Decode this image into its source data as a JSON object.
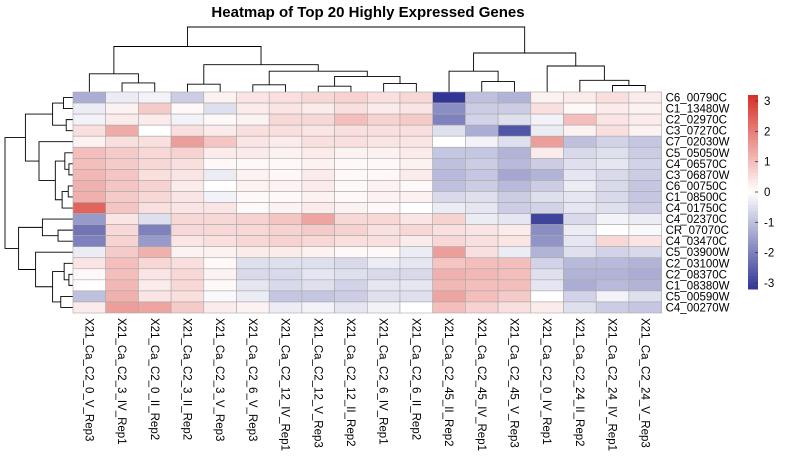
{
  "chart_data": {
    "type": "heatmap",
    "title": "Heatmap of Top 20 Highly Expressed Genes",
    "columns": [
      "X21_Ca_C2_0_V_Rep3",
      "X21_Ca_C2_3_IV_Rep1",
      "X21_Ca_C2_0_II_Rep2",
      "X21_Ca_C2_3_II_Rep2",
      "X21_Ca_C2_3_V_Rep3",
      "X21_Ca_C2_6_V_Rep3",
      "X21_Ca_C2_12_IV_Rep1",
      "X21_Ca_C2_12_V_Rep3",
      "X21_Ca_C2_12_II_Rep2",
      "X21_Ca_C2_6_IV_Rep1",
      "X21_Ca_C2_6_II_Rep2",
      "X21_Ca_C2_45_II_Rep2",
      "X21_Ca_C2_45_IV_Rep1",
      "X21_Ca_C2_45_V_Rep3",
      "X21_Ca_C2_0_IV_Rep1",
      "X21_Ca_C2_24_II_Rep2",
      "X21_Ca_C2_24_IV_Rep1",
      "X21_Ca_C2_24_V_Rep3"
    ],
    "rows": [
      "C6_00790C",
      "C1_13480W",
      "C2_02970C",
      "C3_07270C",
      "C7_02030W",
      "C5_05050W",
      "C4_06570C",
      "C3_06870W",
      "C6_00750C",
      "C1_08500C",
      "C4_01750C",
      "C4_02370C",
      "CR_07070C",
      "C4_03470C",
      "C5_03900W",
      "C2_03100W",
      "C2_08370C",
      "C1_08380W",
      "C5_00590W",
      "C4_00270W"
    ],
    "values": [
      [
        -1.3,
        -0.3,
        -0.2,
        -0.8,
        0.2,
        0.4,
        0.5,
        0.6,
        0.7,
        0.5,
        0.6,
        -3.2,
        -1.0,
        -1.2,
        0.2,
        0.3,
        0.5,
        0.3
      ],
      [
        -0.3,
        0.2,
        0.8,
        0.1,
        -0.5,
        0.3,
        0.4,
        0.3,
        0.5,
        0.3,
        0.4,
        -1.8,
        -0.8,
        -0.8,
        0.5,
        0.1,
        0.3,
        0.2
      ],
      [
        -0.2,
        0.3,
        0.3,
        -0.2,
        0.1,
        0.2,
        0.6,
        0.6,
        1.0,
        0.7,
        0.8,
        -2.0,
        -0.7,
        -0.5,
        -0.2,
        1.0,
        0.4,
        0.3
      ],
      [
        0.5,
        1.3,
        0.0,
        0.5,
        0.3,
        0.5,
        0.5,
        0.4,
        0.5,
        0.5,
        0.5,
        -0.5,
        -1.3,
        -2.7,
        -0.3,
        0.2,
        0.5,
        0.2
      ],
      [
        0.2,
        0.5,
        0.5,
        1.5,
        0.9,
        0.4,
        0.3,
        0.5,
        0.5,
        0.4,
        0.4,
        0.0,
        -0.2,
        -0.5,
        1.5,
        -1.0,
        -0.7,
        -0.9
      ],
      [
        1.0,
        0.8,
        0.6,
        0.7,
        0.3,
        0.3,
        0.2,
        0.3,
        0.2,
        0.2,
        0.3,
        -0.9,
        -0.9,
        -1.2,
        0.3,
        -0.6,
        -0.5,
        -0.8
      ],
      [
        1.0,
        0.8,
        0.6,
        0.5,
        0.1,
        0.1,
        0.1,
        0.2,
        0.1,
        0.1,
        0.2,
        -1.0,
        -0.8,
        -1.1,
        -0.8,
        -0.5,
        -0.4,
        -0.7
      ],
      [
        1.1,
        0.9,
        0.5,
        0.4,
        -0.3,
        0.2,
        0.1,
        0.3,
        0.1,
        0.1,
        0.3,
        -1.1,
        -0.9,
        -1.4,
        -1.2,
        -0.4,
        -0.6,
        -0.8
      ],
      [
        1.2,
        0.9,
        0.7,
        0.3,
        0.0,
        0.2,
        0.2,
        0.3,
        0.1,
        0.2,
        0.1,
        -1.0,
        -0.8,
        -1.1,
        -0.8,
        -0.3,
        -0.6,
        -0.9
      ],
      [
        1.2,
        0.8,
        0.6,
        0.4,
        -0.2,
        0.1,
        0.1,
        0.2,
        0.1,
        0.2,
        0.2,
        -0.6,
        -0.5,
        -0.8,
        -0.5,
        -0.4,
        -0.6,
        -0.9
      ],
      [
        2.4,
        0.9,
        0.5,
        0.4,
        0.4,
        0.1,
        0.2,
        0.3,
        0.2,
        0.1,
        0.0,
        -0.3,
        -0.4,
        -0.8,
        -0.7,
        -0.4,
        -0.5,
        -0.8
      ],
      [
        -1.6,
        0.4,
        -0.5,
        0.6,
        0.6,
        0.7,
        0.9,
        1.4,
        0.6,
        0.6,
        0.4,
        0.7,
        -0.3,
        -0.4,
        -3.0,
        -0.6,
        -0.2,
        -0.3
      ],
      [
        -2.2,
        0.6,
        -2.0,
        0.6,
        0.6,
        0.6,
        0.7,
        0.8,
        0.7,
        0.5,
        0.6,
        0.5,
        0.4,
        0.3,
        -1.8,
        -0.3,
        0.0,
        -0.1
      ],
      [
        -2.0,
        0.7,
        -1.6,
        0.4,
        0.5,
        0.6,
        0.7,
        0.6,
        0.5,
        0.5,
        0.3,
        0.6,
        0.5,
        0.4,
        -1.7,
        -0.4,
        0.6,
        0.4
      ],
      [
        -0.3,
        0.8,
        1.2,
        0.2,
        0.2,
        0.3,
        0.3,
        0.2,
        0.1,
        0.1,
        -0.3,
        1.5,
        0.5,
        -0.3,
        -1.2,
        -0.5,
        -0.7,
        -0.6
      ],
      [
        0.4,
        1.0,
        0.6,
        0.5,
        0.1,
        -0.5,
        -0.5,
        -0.5,
        -0.6,
        -0.3,
        -0.4,
        0.9,
        1.0,
        1.0,
        -0.7,
        -1.1,
        -1.1,
        -1.2
      ],
      [
        0.1,
        1.0,
        0.4,
        0.6,
        0.2,
        -0.6,
        -0.6,
        -0.4,
        -0.5,
        -0.6,
        -0.6,
        1.2,
        1.1,
        1.0,
        -0.5,
        -1.2,
        -1.2,
        -1.3
      ],
      [
        0.0,
        1.1,
        0.3,
        0.6,
        0.1,
        -0.4,
        -0.6,
        -0.5,
        -0.7,
        -0.4,
        -0.4,
        1.1,
        1.0,
        1.0,
        -0.4,
        -1.3,
        -1.1,
        -1.2
      ],
      [
        -1.0,
        1.2,
        0.4,
        0.5,
        -0.1,
        -0.3,
        -0.9,
        -0.9,
        -0.8,
        -0.5,
        -0.5,
        1.4,
        1.0,
        0.8,
        0.0,
        -0.7,
        -0.2,
        -0.5
      ],
      [
        0.3,
        1.5,
        1.4,
        0.8,
        0.3,
        0.2,
        -0.3,
        -0.2,
        -0.4,
        -0.2,
        0.0,
        1.0,
        0.7,
        0.5,
        0.3,
        -0.5,
        -0.8,
        -0.9
      ]
    ],
    "colorbar": {
      "ticks": [
        3,
        2,
        1,
        0,
        -1,
        -2,
        -3
      ],
      "range": [
        -3.2,
        3.2
      ],
      "colors": {
        "low": "#313695",
        "mid": "#ffffff",
        "high": "#d73027"
      }
    },
    "row_dendrogram": true,
    "col_dendrogram": true
  }
}
